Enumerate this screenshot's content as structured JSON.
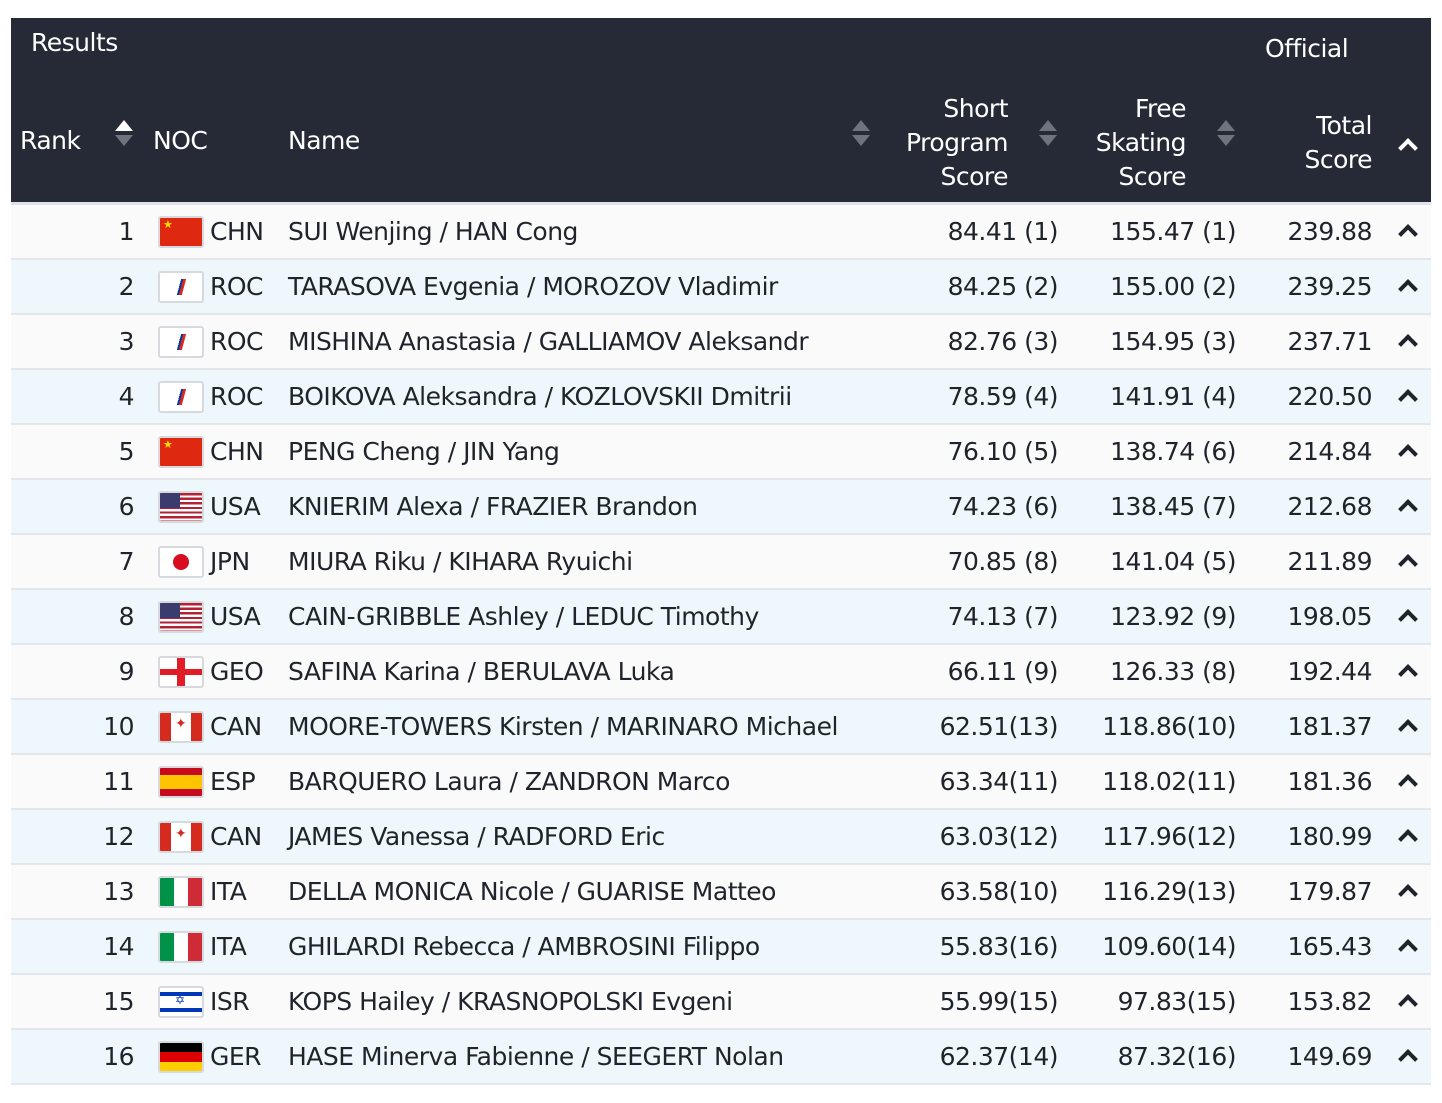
{
  "header": {
    "title": "Results",
    "status": "Official",
    "columns": {
      "rank": "Rank",
      "noc": "NOC",
      "name": "Name",
      "sp": [
        "Short",
        "Program",
        "Score"
      ],
      "fs": [
        "Free",
        "Skating",
        "Score"
      ],
      "total": [
        "Total",
        "Score"
      ]
    }
  },
  "colors": {
    "header_bg": "#252a36",
    "row_odd": "#fafafa",
    "row_even": "#eef7fc"
  },
  "rows": [
    {
      "rank": "1",
      "noc": "CHN",
      "name": "SUI Wenjing / HAN Cong",
      "sp": "84.41 (1)",
      "fs": "155.47 (1)",
      "total": "239.88"
    },
    {
      "rank": "2",
      "noc": "ROC",
      "name": "TARASOVA Evgenia / MOROZOV Vladimir",
      "sp": "84.25 (2)",
      "fs": "155.00 (2)",
      "total": "239.25"
    },
    {
      "rank": "3",
      "noc": "ROC",
      "name": "MISHINA Anastasia / GALLIAMOV Aleksandr",
      "sp": "82.76 (3)",
      "fs": "154.95 (3)",
      "total": "237.71"
    },
    {
      "rank": "4",
      "noc": "ROC",
      "name": "BOIKOVA Aleksandra / KOZLOVSKII Dmitrii",
      "sp": "78.59 (4)",
      "fs": "141.91 (4)",
      "total": "220.50"
    },
    {
      "rank": "5",
      "noc": "CHN",
      "name": "PENG Cheng / JIN Yang",
      "sp": "76.10 (5)",
      "fs": "138.74 (6)",
      "total": "214.84"
    },
    {
      "rank": "6",
      "noc": "USA",
      "name": "KNIERIM Alexa / FRAZIER Brandon",
      "sp": "74.23 (6)",
      "fs": "138.45 (7)",
      "total": "212.68"
    },
    {
      "rank": "7",
      "noc": "JPN",
      "name": "MIURA Riku / KIHARA Ryuichi",
      "sp": "70.85 (8)",
      "fs": "141.04 (5)",
      "total": "211.89"
    },
    {
      "rank": "8",
      "noc": "USA",
      "name": "CAIN-GRIBBLE Ashley / LEDUC Timothy",
      "sp": "74.13 (7)",
      "fs": "123.92 (9)",
      "total": "198.05"
    },
    {
      "rank": "9",
      "noc": "GEO",
      "name": "SAFINA Karina / BERULAVA Luka",
      "sp": "66.11 (9)",
      "fs": "126.33 (8)",
      "total": "192.44"
    },
    {
      "rank": "10",
      "noc": "CAN",
      "name": "MOORE-TOWERS Kirsten / MARINARO Michael",
      "sp": "62.51(13)",
      "fs": "118.86(10)",
      "total": "181.37"
    },
    {
      "rank": "11",
      "noc": "ESP",
      "name": "BARQUERO Laura / ZANDRON Marco",
      "sp": "63.34(11)",
      "fs": "118.02(11)",
      "total": "181.36"
    },
    {
      "rank": "12",
      "noc": "CAN",
      "name": "JAMES Vanessa / RADFORD Eric",
      "sp": "63.03(12)",
      "fs": "117.96(12)",
      "total": "180.99"
    },
    {
      "rank": "13",
      "noc": "ITA",
      "name": "DELLA MONICA Nicole / GUARISE Matteo",
      "sp": "63.58(10)",
      "fs": "116.29(13)",
      "total": "179.87"
    },
    {
      "rank": "14",
      "noc": "ITA",
      "name": "GHILARDI Rebecca / AMBROSINI Filippo",
      "sp": "55.83(16)",
      "fs": "109.60(14)",
      "total": "165.43"
    },
    {
      "rank": "15",
      "noc": "ISR",
      "name": "KOPS Hailey / KRASNOPOLSKI Evgeni",
      "sp": "55.99(15)",
      "fs": "97.83(15)",
      "total": "153.82"
    },
    {
      "rank": "16",
      "noc": "GER",
      "name": "HASE Minerva Fabienne / SEEGERT Nolan",
      "sp": "62.37(14)",
      "fs": "87.32(16)",
      "total": "149.69"
    }
  ]
}
